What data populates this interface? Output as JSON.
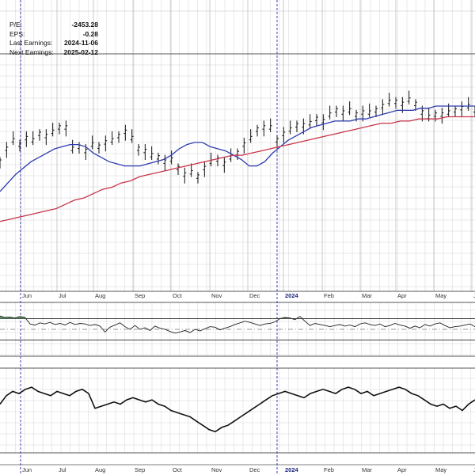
{
  "stats": [
    {
      "label": "P/E:",
      "value": "-2453.28"
    },
    {
      "label": "EPS:",
      "value": "-0.28"
    },
    {
      "label": "Last Earnings:",
      "value": "2024-11-06"
    },
    {
      "label": "Next Earnings:",
      "value": "2025-02-12"
    }
  ],
  "colors": {
    "price": "#111111",
    "ma50": "#2b3bb0",
    "ma200": "#c8344a",
    "grid": "#d4d4d4",
    "frame": "#555555",
    "overbought_fill": "#4f8a5a",
    "marker": "#2d2db4"
  },
  "chart_data": [
    {
      "type": "line",
      "panel": "price",
      "x_tick_labels": [
        "Jun",
        "Jul",
        "Aug",
        "Sep",
        "Oct",
        "Nov",
        "Dec",
        "2024",
        "Feb",
        "Mar",
        "Apr",
        "May",
        "Ju"
      ],
      "series": [
        {
          "style": "ohlc-bars",
          "values": [
            54,
            60,
            64,
            62,
            65,
            64,
            67,
            66,
            68,
            70,
            70,
            60,
            61,
            59,
            62,
            61,
            63,
            64,
            66,
            68,
            65,
            60,
            59,
            57,
            56,
            54,
            55,
            51,
            48,
            49,
            47,
            51,
            54,
            55,
            53,
            56,
            58,
            62,
            65,
            69,
            70,
            70,
            64,
            67,
            69,
            71,
            71,
            72,
            74,
            73,
            76,
            78,
            77,
            78,
            76,
            77,
            77,
            78,
            80,
            82,
            82,
            81,
            83,
            81,
            77,
            75,
            76,
            76,
            77,
            78,
            79,
            80,
            78
          ]
        },
        {
          "style": "line",
          "values": [
            40,
            44,
            48,
            51,
            54,
            56,
            58,
            60,
            61,
            62,
            62,
            61,
            58,
            56,
            54,
            53,
            52,
            52,
            52,
            53,
            54,
            55,
            57,
            60,
            62,
            63,
            63,
            61,
            60,
            59,
            57,
            55,
            52,
            52,
            54,
            58,
            61,
            64,
            66,
            68,
            70,
            71,
            72,
            73,
            73,
            73,
            74,
            74,
            75,
            76,
            77,
            78,
            78,
            78,
            79,
            79,
            80,
            80,
            80,
            80,
            80,
            80
          ]
        },
        {
          "style": "line",
          "values": [
            26,
            27,
            28,
            29,
            30,
            31,
            32,
            34,
            36,
            37,
            39,
            41,
            42,
            44,
            45,
            47,
            48,
            49,
            50,
            51,
            52,
            53,
            54,
            55,
            56,
            57,
            57,
            58,
            59,
            60,
            61,
            62,
            63,
            64,
            65,
            66,
            67,
            68,
            69,
            70,
            71,
            72,
            72,
            73,
            73,
            74,
            74,
            74,
            75,
            75,
            75,
            75
          ]
        }
      ]
    },
    {
      "type": "line",
      "panel": "oscillator",
      "ylim": [
        0,
        100
      ],
      "series": [
        {
          "values": [
            75,
            72,
            73,
            71,
            74,
            72,
            60,
            58,
            62,
            60,
            63,
            59,
            61,
            58,
            63,
            59,
            61,
            60,
            57,
            59,
            56,
            45,
            54,
            58,
            62,
            55,
            50,
            57,
            50,
            53,
            48,
            56,
            52,
            50,
            46,
            43,
            45,
            48,
            44,
            50,
            47,
            51,
            55,
            54,
            49,
            52,
            55,
            59,
            62,
            65,
            63,
            60,
            57,
            60,
            61,
            64,
            70,
            72,
            71,
            68,
            74,
            65,
            57,
            61,
            59,
            57,
            55,
            57,
            59,
            56,
            58,
            55,
            60,
            62,
            59,
            57,
            60,
            55,
            57,
            61,
            58,
            56,
            52,
            56,
            53,
            59,
            56,
            60,
            62,
            57,
            53,
            55,
            56,
            58,
            60,
            55
          ]
        }
      ]
    },
    {
      "type": "line",
      "panel": "lower",
      "series": [
        {
          "values": [
            58,
            62,
            64,
            63,
            65,
            66,
            64,
            63,
            62,
            64,
            63,
            62,
            64,
            65,
            63,
            56,
            57,
            58,
            59,
            58,
            60,
            61,
            60,
            59,
            60,
            58,
            57,
            55,
            54,
            53,
            52,
            50,
            48,
            46,
            45,
            47,
            48,
            50,
            52,
            54,
            56,
            58,
            60,
            62,
            63,
            64,
            63,
            62,
            61,
            63,
            64,
            65,
            64,
            63,
            65,
            66,
            65,
            63,
            64,
            62,
            63,
            64,
            65,
            66,
            65,
            63,
            62,
            60,
            58,
            57,
            58,
            56,
            57,
            55,
            58,
            60
          ]
        }
      ]
    }
  ]
}
